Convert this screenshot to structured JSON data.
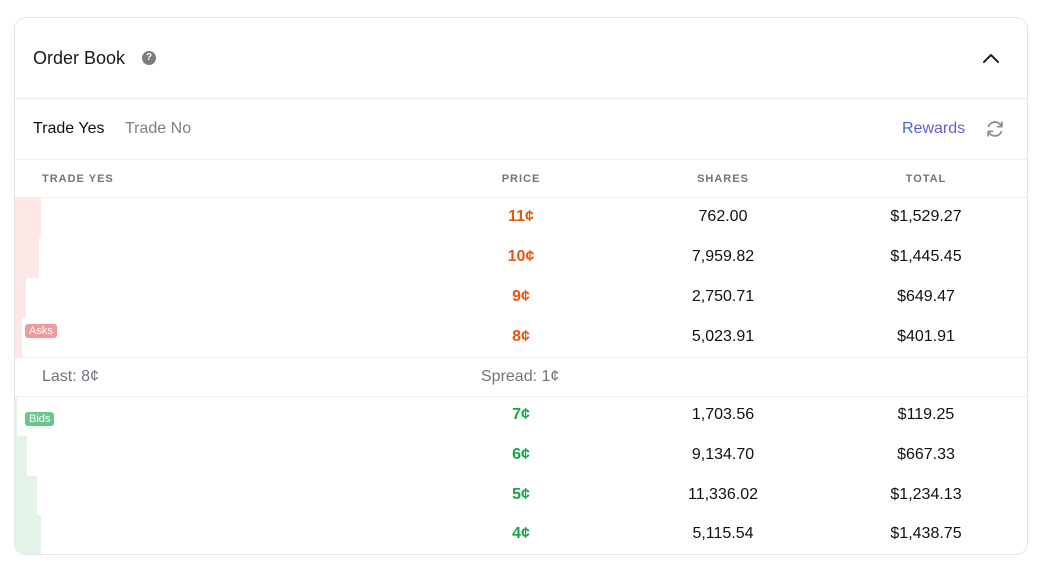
{
  "header": {
    "title": "Order Book",
    "help_icon": "question-circle-icon",
    "collapse_icon": "chevron-up-icon"
  },
  "tabs": {
    "yes_label": "Trade Yes",
    "no_label": "Trade No",
    "active": "Trade Yes"
  },
  "toolbar": {
    "rewards_label": "Rewards",
    "refresh_icon": "refresh-icon"
  },
  "columns": {
    "side": "TRADE YES",
    "price": "PRICE",
    "shares": "SHARES",
    "total": "TOTAL"
  },
  "asks_label": "Asks",
  "bids_label": "Bids",
  "asks": [
    {
      "price": "11¢",
      "shares": "762.00",
      "total": "$1,529.27",
      "depth": 1.0
    },
    {
      "price": "10¢",
      "shares": "7,959.82",
      "total": "$1,445.45",
      "depth": 0.92
    },
    {
      "price": "9¢",
      "shares": "2,750.71",
      "total": "$649.47",
      "depth": 0.42
    },
    {
      "price": "8¢",
      "shares": "5,023.91",
      "total": "$401.91",
      "depth": 0.27
    }
  ],
  "mid": {
    "last": "Last: 8¢",
    "spread": "Spread: 1¢"
  },
  "bids": [
    {
      "price": "7¢",
      "shares": "1,703.56",
      "total": "$119.25",
      "depth": 0.08
    },
    {
      "price": "6¢",
      "shares": "9,134.70",
      "total": "$667.33",
      "depth": 0.46
    },
    {
      "price": "5¢",
      "shares": "11,336.02",
      "total": "$1,234.13",
      "depth": 0.86
    },
    {
      "price": "4¢",
      "shares": "5,115.54",
      "total": "$1,438.75",
      "depth": 1.0
    }
  ],
  "colors": {
    "ask": "#e4570f",
    "bid": "#1aa34a",
    "ask_depth": "#fde8e8",
    "bid_depth": "#e3f3e8",
    "rewards_from": "#3a63e0",
    "rewards_to": "#8a4fd8"
  }
}
